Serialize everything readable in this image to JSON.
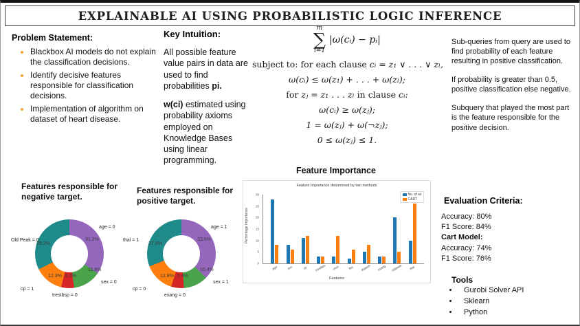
{
  "title": "EXPLAINABLE AI USING PROBABILISTIC LOGIC INFERENCE",
  "problem": {
    "heading": "Problem Statement:",
    "bullets": [
      "Blackbox AI models do not explain the classification decisions.",
      "Identify decisive features responsible for classification decisions.",
      "Implementation of algorithm on dataset of heart disease."
    ]
  },
  "intuition": {
    "heading": "Key Intuition:",
    "p1_pre": "All possible feature value pairs in data are used to find probabilities ",
    "p1_bold": "pi.",
    "p2_bold": "w(ci)",
    "p2_rest": " estimated using probability axioms employed on Knowledge Bases using linear programming."
  },
  "equations": {
    "sum_upper": "m",
    "sum_lower": "i=1",
    "sum_expr": "|ω(cᵢ) − pᵢ|",
    "line2_pre": "subject to: for each clause ",
    "line2_math": "cᵢ = z₁ ∨ . . . ∨ zₗ,",
    "line3": "ω(cᵢ) ≤ ω(z₁) + . . . + ω(zₗ);",
    "line4_pre": "for ",
    "line4_math": "zⱼ = z₁ . . . zₗ",
    "line4_mid": " in clause ",
    "line4_end": "cᵢ:",
    "line5": "ω(cᵢ) ≥ ω(zⱼ);",
    "line6": "1 = ω(zⱼ) + ω(¬zⱼ);",
    "line7": "0 ≤ ω(zⱼ) ≤ 1."
  },
  "notes": [
    "Sub-queries from query are used to find probability of each feature resulting in positive classification.",
    "If probability is greater than 0.5, positive classification else negative.",
    "Subquery that played the most part is the feature responsible for the positive decision."
  ],
  "donut_negative_heading": "Features responsible for negative target.",
  "donut_positive_heading": "Features responsible for positive target.",
  "importance_heading": "Feature Importance",
  "evaluation": {
    "heading": "Evaluation Criteria:",
    "lines": [
      "Accuracy: 80%",
      "F1 Score: 84%",
      "Cart Model:",
      "Accuracy: 74%",
      "F1 Score: 76%"
    ]
  },
  "tools": {
    "heading": "Tools",
    "items": [
      "Gurobi Solver API",
      "Sklearn",
      "Python"
    ]
  },
  "chart_data": [
    {
      "type": "pie",
      "title": "Features responsible for negative target.",
      "labels": [
        "age = 0",
        "sex = 0",
        "trestbsp = 0",
        "cp = 1",
        "Old Peak = 0"
      ],
      "values": [
        31.2,
        11.8,
        5.5,
        12.3,
        29.2
      ],
      "colors": [
        "#9467bd",
        "#4aa34a",
        "#d62728",
        "#ff7f0e",
        "#1f8a8a"
      ],
      "donut": true
    },
    {
      "type": "pie",
      "title": "Features responsible for positive target.",
      "labels": [
        "age = 1",
        "sex = 1",
        "exang = 0",
        "cp = 0",
        "thal = 1"
      ],
      "values": [
        33.6,
        10.4,
        5.4,
        12.8,
        27.9
      ],
      "colors": [
        "#9467bd",
        "#4aa34a",
        "#d62728",
        "#ff7f0e",
        "#1f8a8a"
      ],
      "donut": true
    },
    {
      "type": "bar",
      "title": "Feature Importance determined by two methods",
      "xlabel": "Features",
      "ylabel": "Percentage Importance",
      "ylim": [
        0,
        30
      ],
      "yticks": [
        0,
        5,
        10,
        15,
        20,
        25,
        30
      ],
      "categories": [
        "age",
        "sex",
        "cp",
        "trestbps",
        "chol",
        "fbs",
        "thalach",
        "exang",
        "oldpeak",
        "thal"
      ],
      "series": [
        {
          "name": "No. of wi",
          "color": "#1f77b4",
          "values": [
            28,
            8,
            11,
            3,
            3,
            2,
            5,
            3,
            20,
            10
          ]
        },
        {
          "name": "CART",
          "color": "#ff7f0e",
          "values": [
            8,
            6,
            12,
            3,
            12,
            6,
            8,
            3,
            5,
            26
          ]
        }
      ],
      "legend_position": "upper right"
    }
  ]
}
